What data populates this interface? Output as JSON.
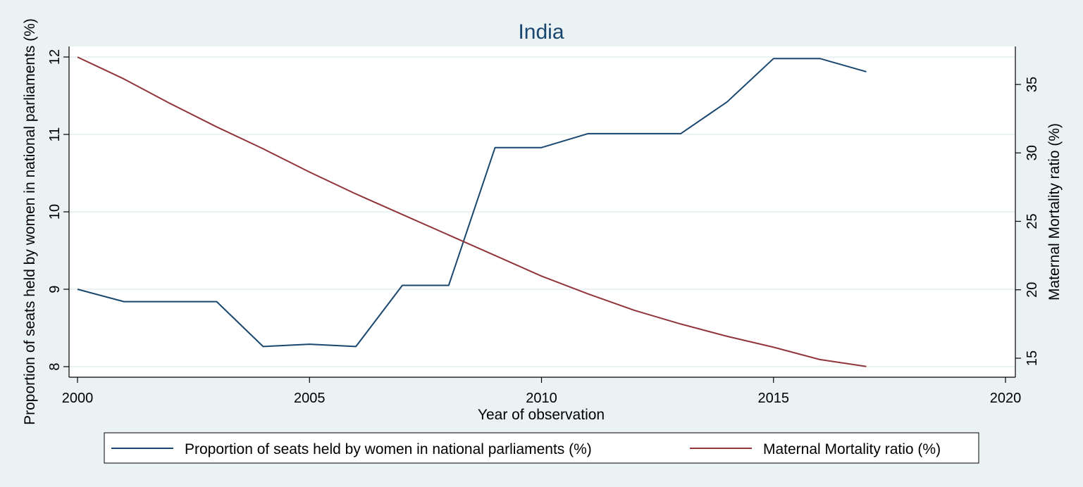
{
  "chart_data": {
    "type": "line",
    "title": "India",
    "xlabel": "Year of observation",
    "ylabel_left": "Proportion of seats held by women in national parliaments (%)",
    "ylabel_right": "Maternal Mortality ratio (%)",
    "x": [
      2000,
      2001,
      2002,
      2003,
      2004,
      2005,
      2006,
      2007,
      2008,
      2009,
      2010,
      2011,
      2012,
      2013,
      2014,
      2015,
      2016,
      2017
    ],
    "xlim": [
      2000,
      2020
    ],
    "x_ticks": [
      2000,
      2005,
      2010,
      2015,
      2020
    ],
    "ylim_left": [
      8,
      12
    ],
    "y_ticks_left": [
      8,
      9,
      10,
      11,
      12
    ],
    "ylim_right": [
      15,
      35
    ],
    "y_ticks_right": [
      15,
      20,
      25,
      30,
      35
    ],
    "grid": true,
    "legend_position": "bottom",
    "series": [
      {
        "name": "Proportion of seats held by women in national parliaments (%)",
        "axis": "left",
        "color": "#1a476f",
        "values": [
          9.0,
          8.84,
          8.84,
          8.84,
          8.26,
          8.29,
          8.26,
          9.05,
          9.05,
          10.83,
          10.83,
          11.01,
          11.01,
          11.01,
          11.42,
          11.98,
          11.98,
          11.81
        ]
      },
      {
        "name": "Maternal Mortality ratio (%)",
        "axis": "right",
        "color": "#90353b",
        "values": [
          37.0,
          35.4,
          33.6,
          31.9,
          30.3,
          28.6,
          27.0,
          25.5,
          24.0,
          22.5,
          21.0,
          19.7,
          18.5,
          17.5,
          16.6,
          15.8,
          14.9,
          14.4
        ]
      }
    ]
  }
}
